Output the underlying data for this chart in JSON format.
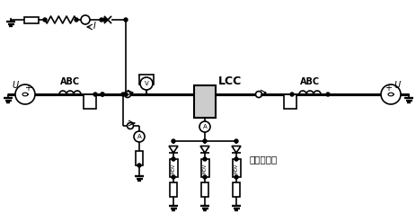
{
  "bg_color": "#ffffff",
  "line_color": "#000000",
  "lw": 1.2,
  "tlw": 2.2,
  "labels": {
    "U_left": "U",
    "U_right": "U",
    "ABC_left": "ABC",
    "ABC_right": "ABC",
    "LCC": "LCC",
    "voltage_limiter": "电压限制器",
    "I_label": "I"
  },
  "figsize": [
    4.63,
    2.37
  ],
  "dpi": 100,
  "ybus": 105,
  "ytop": 22,
  "xcenter": 228
}
